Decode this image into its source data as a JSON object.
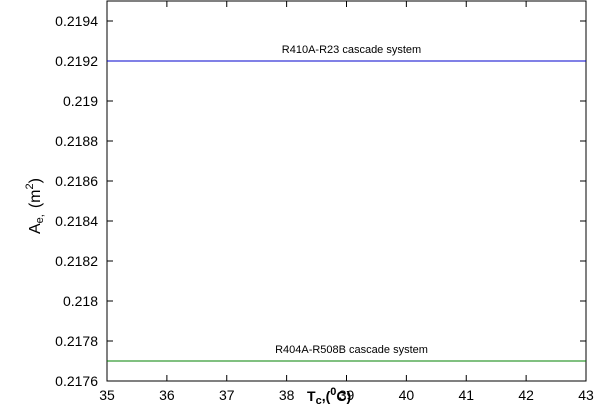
{
  "chart_data": {
    "type": "line",
    "xlabel": {
      "main": "T",
      "sub": "c",
      "paren_open": ",(",
      "sup": "0",
      "unit": "C)"
    },
    "ylabel": {
      "main": "A",
      "sub": "e,",
      "unit_open": "(m",
      "sup": "2",
      "unit_close": ")"
    },
    "xlim": [
      35,
      43
    ],
    "ylim": [
      0.2176,
      0.2195
    ],
    "xticks": [
      35,
      36,
      37,
      38,
      39,
      40,
      41,
      42,
      43
    ],
    "xtick_labels": [
      "35",
      "36",
      "37",
      "38",
      "39",
      "40",
      "41",
      "42",
      "43"
    ],
    "yticks": [
      0.2176,
      0.2178,
      0.218,
      0.2182,
      0.2184,
      0.2186,
      0.2188,
      0.219,
      0.2192,
      0.2194
    ],
    "ytick_labels": [
      "0.2176",
      "0.2178",
      "0.218",
      "0.2182",
      "0.2184",
      "0.2186",
      "0.2188",
      "0.219",
      "0.2192",
      "0.2194"
    ],
    "grid": false,
    "series": [
      {
        "name": "R410A-R23 cascade system",
        "color": "#0000cc",
        "x": [
          35,
          36,
          37,
          38,
          39,
          40,
          41,
          42,
          43
        ],
        "y": [
          0.2192,
          0.2192,
          0.2192,
          0.2192,
          0.2192,
          0.2192,
          0.2192,
          0.2192,
          0.2192
        ]
      },
      {
        "name": "R404A-R508B cascade system",
        "color": "#008000",
        "x": [
          35,
          36,
          37,
          38,
          39,
          40,
          41,
          42,
          43
        ],
        "y": [
          0.2177,
          0.2177,
          0.2177,
          0.2177,
          0.2177,
          0.2177,
          0.2177,
          0.2177,
          0.2177
        ]
      }
    ]
  }
}
